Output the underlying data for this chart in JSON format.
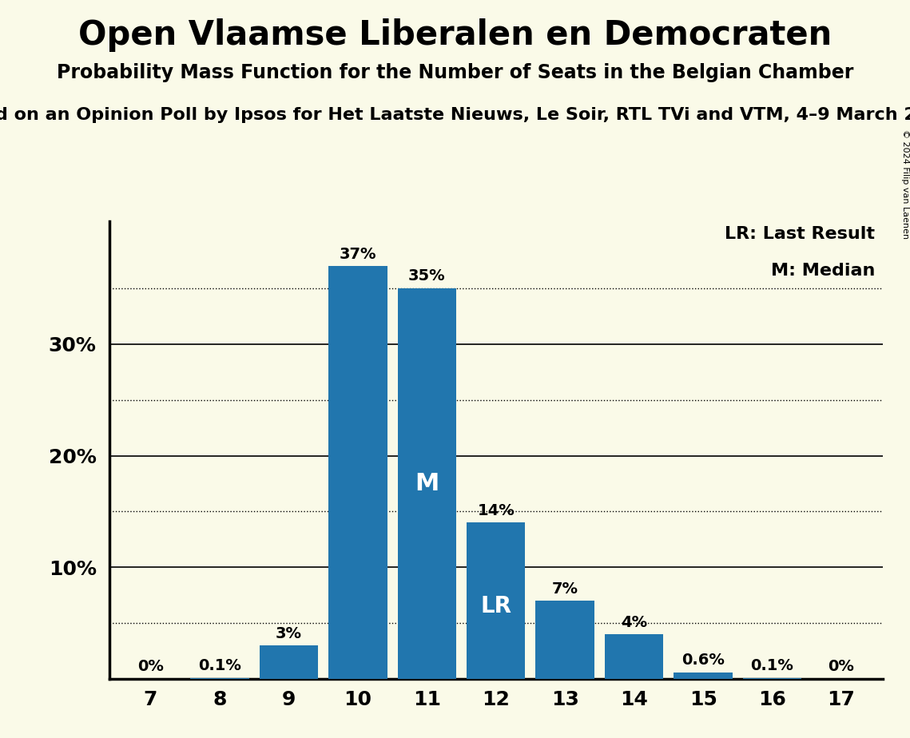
{
  "title": "Open Vlaamse Liberalen en Democraten",
  "subtitle": "Probability Mass Function for the Number of Seats in the Belgian Chamber",
  "source_line": "d on an Opinion Poll by Ipsos for Het Laatste Nieuws, Le Soir, RTL TVi and VTM, 4–9 March 2",
  "copyright": "© 2024 Filip van Laenen",
  "seats": [
    7,
    8,
    9,
    10,
    11,
    12,
    13,
    14,
    15,
    16,
    17
  ],
  "probabilities": [
    0.0,
    0.001,
    0.03,
    0.37,
    0.35,
    0.14,
    0.07,
    0.04,
    0.006,
    0.001,
    0.0
  ],
  "labels": [
    "0%",
    "0.1%",
    "3%",
    "37%",
    "35%",
    "14%",
    "7%",
    "4%",
    "0.6%",
    "0.1%",
    "0%"
  ],
  "bar_color": "#2176AE",
  "background_color": "#FAFAE8",
  "median_seat": 11,
  "lr_seat": 12,
  "median_label": "M",
  "lr_label": "LR",
  "legend_lr": "LR: Last Result",
  "legend_m": "M: Median",
  "solid_grid": [
    0.1,
    0.2,
    0.3
  ],
  "dotted_grid": [
    0.05,
    0.15,
    0.25,
    0.35
  ],
  "ytick_vals": [
    0.1,
    0.2,
    0.3
  ],
  "ytick_labels": [
    "10%",
    "20%",
    "30%"
  ],
  "ylim": [
    0,
    0.41
  ],
  "xlim": [
    6.4,
    17.6
  ]
}
